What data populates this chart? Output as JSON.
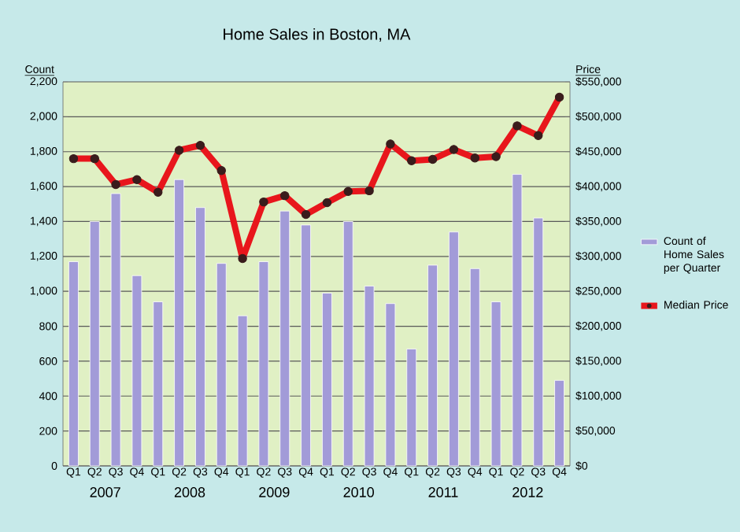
{
  "chart_data": {
    "type": "bar",
    "title": "Home Sales in Boston, MA",
    "ylabel": "Count",
    "y2label": "Price",
    "categories": [
      "Q1",
      "Q2",
      "Q3",
      "Q4",
      "Q1",
      "Q2",
      "Q3",
      "Q4",
      "Q1",
      "Q2",
      "Q3",
      "Q4",
      "Q1",
      "Q2",
      "Q3",
      "Q4",
      "Q1",
      "Q2",
      "Q3",
      "Q4",
      "Q1",
      "Q2",
      "Q3",
      "Q4"
    ],
    "annotations": [
      "2007",
      "2008",
      "2009",
      "2010",
      "2011",
      "2012"
    ],
    "series": [
      {
        "name": "Count of Home Sales per Quarter",
        "color": "#a29bd8",
        "values": [
          1170,
          1400,
          1560,
          1090,
          940,
          1640,
          1480,
          1160,
          860,
          1170,
          1460,
          1380,
          990,
          1400,
          1030,
          930,
          670,
          1150,
          1340,
          1130,
          940,
          1670,
          1420,
          490
        ]
      },
      {
        "name": "Median Price",
        "type": "line",
        "axis": "y2",
        "color": "#e8161c",
        "values": [
          440000,
          440000,
          403000,
          410000,
          392000,
          452000,
          459000,
          423000,
          297000,
          378000,
          387000,
          360000,
          377000,
          393000,
          394000,
          461000,
          437000,
          439000,
          453000,
          441000,
          443000,
          487000,
          473000,
          528000
        ]
      }
    ],
    "ylim": [
      0,
      2200
    ],
    "yticks": [
      0,
      200,
      400,
      600,
      800,
      {
        "value": 1000,
        "label": "1,000"
      },
      {
        "value": 1200,
        "label": "1,200"
      },
      {
        "value": 1400,
        "label": "1,400"
      },
      {
        "value": 1600,
        "label": "1,600"
      },
      {
        "value": 1800,
        "label": "1,800"
      },
      {
        "value": 2000,
        "label": "2,000"
      },
      {
        "value": 2200,
        "label": "2,200"
      }
    ],
    "y2lim": [
      0,
      550000
    ],
    "y2ticks": [
      {
        "value": 0,
        "label": "$0"
      },
      {
        "value": 50000,
        "label": "$50,000"
      },
      {
        "value": 100000,
        "label": "$100,000"
      },
      {
        "value": 150000,
        "label": "$150,000"
      },
      {
        "value": 200000,
        "label": "$200,000"
      },
      {
        "value": 250000,
        "label": "$250,000"
      },
      {
        "value": 300000,
        "label": "$300,000"
      },
      {
        "value": 350000,
        "label": "$350,000"
      },
      {
        "value": 400000,
        "label": "$400,000"
      },
      {
        "value": 450000,
        "label": "$450,000"
      },
      {
        "value": 500000,
        "label": "$500,000"
      },
      {
        "value": 550000,
        "label": "$550,000"
      }
    ],
    "grid": "y",
    "legend": "right",
    "marker": "circle"
  }
}
